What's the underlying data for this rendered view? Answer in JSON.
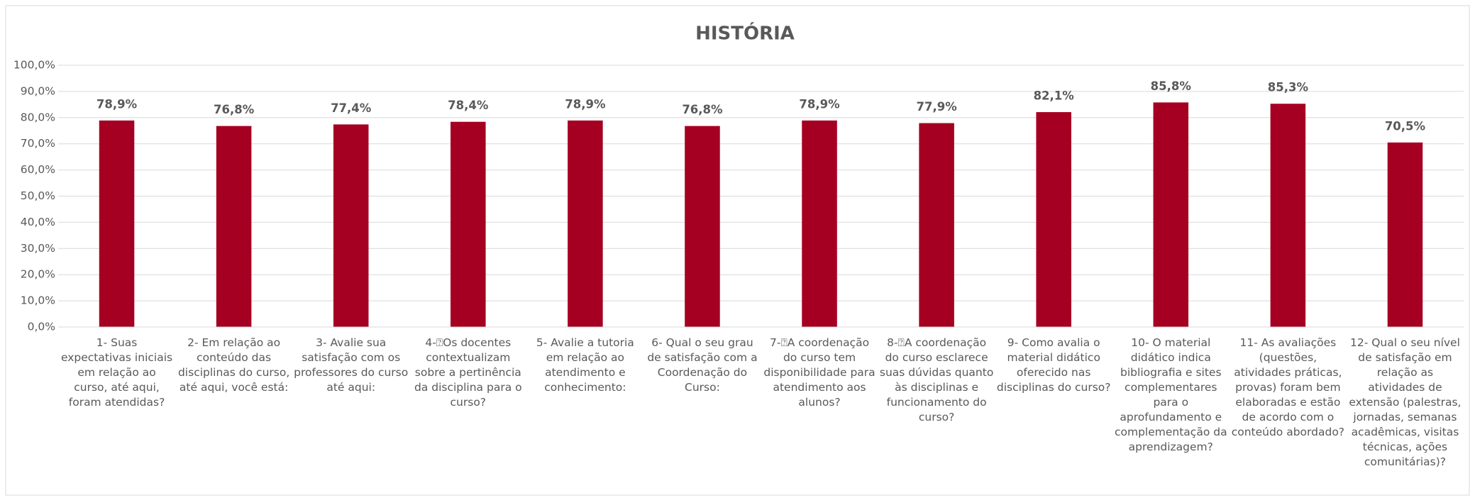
{
  "chart_data": {
    "type": "bar",
    "title": "HISTÓRIA",
    "categories": [
      "1- Suas expectativas iniciais em relação ao curso, até aqui, foram atendidas?",
      "2- Em relação ao conteúdo das disciplinas do curso, até aqui, você está:",
      "3- Avalie sua satisfação com os professores do curso até aqui:",
      "4-⍰Os docentes contextualizam sobre a pertinência da disciplina para o curso?",
      "5- Avalie a tutoria em relação ao atendimento e conhecimento:",
      "6- Qual o seu grau de satisfação com a Coordenação do Curso:",
      "7-⍰A coordenação do curso tem disponibilidade para atendimento aos alunos?",
      "8-⍰A coordenação do curso esclarece suas dúvidas quanto às disciplinas e funcionamento do curso?",
      "9- Como avalia o material didático oferecido nas disciplinas do curso?",
      "10- O material didático indica bibliografia e sites complementares para o aprofundamento e complementação da aprendizagem?",
      "11- As avaliações (questões, atividades práticas, provas) foram bem elaboradas e estão de acordo com o conteúdo abordado?",
      "12- Qual o seu nível de satisfação em relação as atividades de extensão (palestras, jornadas, semanas acadêmicas, visitas técnicas, ações comunitárias)?"
    ],
    "values": [
      78.9,
      76.8,
      77.4,
      78.4,
      78.9,
      76.8,
      78.9,
      77.9,
      82.1,
      85.8,
      85.3,
      70.5
    ],
    "value_labels": [
      "78,9%",
      "76,8%",
      "77,4%",
      "78,4%",
      "78,9%",
      "76,8%",
      "78,9%",
      "77,9%",
      "82,1%",
      "85,8%",
      "85,3%",
      "70,5%"
    ],
    "color": "#a50021",
    "ylim": [
      0,
      100
    ],
    "yticks": [
      {
        "value": 0,
        "label": "0,0%"
      },
      {
        "value": 10,
        "label": "10,0%"
      },
      {
        "value": 20,
        "label": "20,0%"
      },
      {
        "value": 30,
        "label": "30,0%"
      },
      {
        "value": 40,
        "label": "40,0%"
      },
      {
        "value": 50,
        "label": "50,0%"
      },
      {
        "value": 60,
        "label": "60,0%"
      },
      {
        "value": 70,
        "label": "70,0%"
      },
      {
        "value": 80,
        "label": "80,0%"
      },
      {
        "value": 90,
        "label": "90,0%"
      },
      {
        "value": 100,
        "label": "100,0%"
      }
    ],
    "grid": true
  }
}
